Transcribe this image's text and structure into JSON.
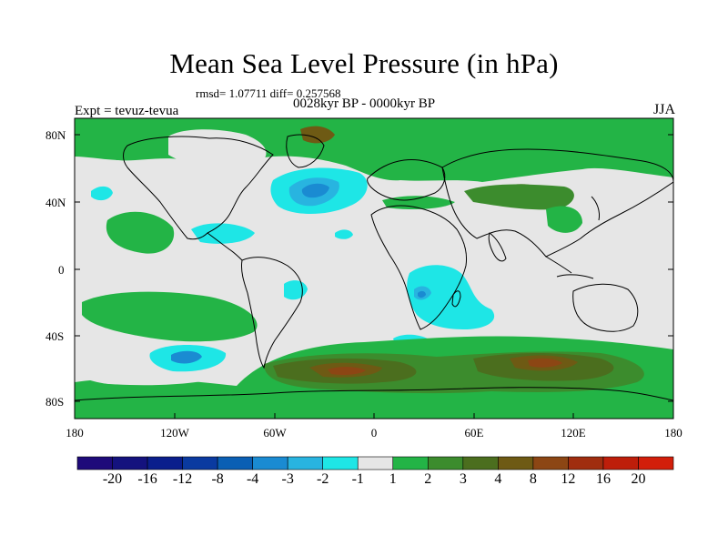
{
  "title": "Mean Sea Level Pressure (in hPa)",
  "stats": "rmsd= 1.07711 diff= 0.257568",
  "period": "0028kyr BP - 0000kyr BP",
  "experiment": "Expt = tevuz-tevua",
  "season": "JJA",
  "latitude_labels": [
    "80N",
    "40N",
    "0",
    "40S",
    "80S"
  ],
  "longitude_labels": [
    "180",
    "120W",
    "60W",
    "0",
    "60E",
    "120E",
    "180"
  ],
  "colorbar": {
    "labels": [
      "-20",
      "-16",
      "-12",
      "-8",
      "-4",
      "-3",
      "-2",
      "-1",
      "1",
      "2",
      "3",
      "4",
      "8",
      "12",
      "16",
      "20"
    ],
    "colors": [
      "#1e0a7a",
      "#14127e",
      "#0a1e8c",
      "#0a3aa0",
      "#0a5fb4",
      "#1a8bd2",
      "#28b4e0",
      "#1ee6e6",
      "#e6e6e6",
      "#23b446",
      "#3c8c2d",
      "#4b6e1e",
      "#6e5a14",
      "#8c4614",
      "#a02d0f",
      "#be1e0a",
      "#d21e0a"
    ]
  },
  "colors": {
    "neutral": "#e6e6e6",
    "green": "#23b446",
    "dark_green": "#3c8c2d",
    "olive": "#6e5a14",
    "brown": "#8c4614",
    "cyan": "#1ee6e6",
    "light_blue": "#28b4e0",
    "blue": "#1a8bd2"
  }
}
